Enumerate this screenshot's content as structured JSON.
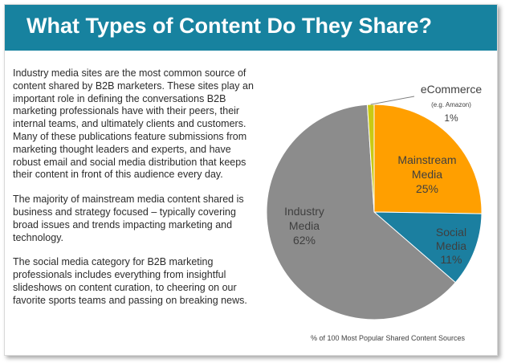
{
  "header": {
    "title": "What Types of Content Do They Share?"
  },
  "body": {
    "paragraphs": [
      "Industry media sites are the most common source of content shared by B2B marketers. These sites play an important role in defining the conversations B2B marketing professionals have with their peers, their internal teams, and ultimately clients and customers. Many of these publications feature submissions from marketing thought leaders and experts, and have robust email and social media distribution that keeps their content in front of this audience every day.",
      "The majority of mainstream media content shared is business and strategy focused – typically covering broad issues and trends impacting marketing and technology.",
      "The social media category for B2B marketing professionals includes everything from insightful slideshows on content curation, to cheering on our favorite sports teams and passing on breaking news."
    ]
  },
  "chart_data": {
    "type": "pie",
    "caption": "% of 100 Most Popular Shared Content Sources",
    "start": "top, clockwise",
    "slices": [
      {
        "label": "Mainstream Media",
        "lines": [
          "Mainstream",
          "Media"
        ],
        "value": 25,
        "value_label": "25%",
        "color": "#ff9f00"
      },
      {
        "label": "Social Media",
        "lines": [
          "Social",
          "Media"
        ],
        "value": 11,
        "value_label": "11%",
        "color": "#1b7fa0"
      },
      {
        "label": "Industry Media",
        "lines": [
          "Industry",
          "Media"
        ],
        "value": 62,
        "value_label": "62%",
        "color": "#8c8c8c"
      },
      {
        "label": "eCommerce",
        "sublabel": "(e.g. Amazon)",
        "value": 1,
        "value_label": "1%",
        "color": "#c9c914"
      }
    ]
  }
}
